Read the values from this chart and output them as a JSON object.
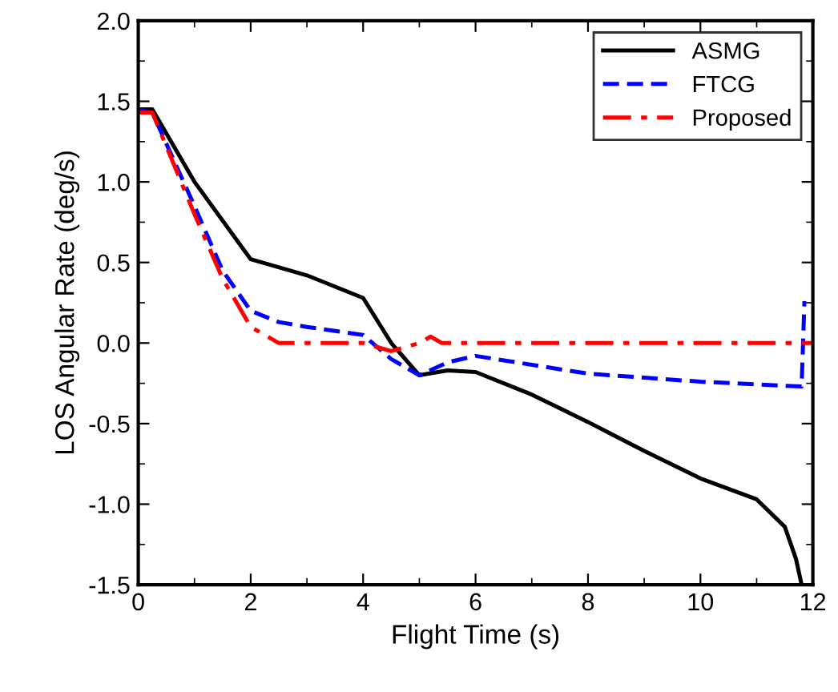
{
  "chart_data": {
    "type": "line",
    "xlabel": "Flight Time (s)",
    "ylabel": "LOS Angular Rate (deg/s)",
    "xlim": [
      0,
      12
    ],
    "xticks": [
      0,
      2,
      4,
      6,
      8,
      10,
      12
    ],
    "ylim": [
      -1.5,
      2.0
    ],
    "yticks": [
      -1.5,
      {
        "value": -1.0,
        "label": "-1.0"
      },
      -0.5,
      {
        "value": 0.0,
        "label": "0.0"
      },
      0.5,
      {
        "value": 1.0,
        "label": "1.0"
      },
      1.5,
      {
        "value": 2.0,
        "label": "2.0"
      }
    ],
    "grid": false,
    "legend": "top right",
    "series": [
      {
        "name": "ASMG",
        "color": "#000000",
        "line_style": "solid",
        "x": [
          0,
          0.25,
          1,
          2,
          3,
          4,
          4.5,
          5,
          5.5,
          6,
          7,
          8,
          9,
          10,
          11,
          11.5,
          11.7,
          11.8
        ],
        "values": [
          1.45,
          1.45,
          1.0,
          0.52,
          0.42,
          0.28,
          0.0,
          -0.2,
          -0.17,
          -0.18,
          -0.32,
          -0.49,
          -0.67,
          -0.84,
          -0.97,
          -1.14,
          -1.34,
          -1.5
        ]
      },
      {
        "name": "FTCG",
        "color": "#0000ff",
        "line_style": "dashed",
        "x": [
          0,
          0.25,
          1,
          1.5,
          2,
          2.5,
          3,
          4,
          4.5,
          5,
          5.5,
          6,
          8,
          10,
          11.8,
          11.85
        ],
        "values": [
          1.45,
          1.43,
          0.85,
          0.45,
          0.2,
          0.13,
          0.1,
          0.05,
          -0.1,
          -0.2,
          -0.12,
          -0.08,
          -0.19,
          -0.24,
          -0.27,
          0.26
        ]
      },
      {
        "name": "Proposed",
        "color": "#ff0000",
        "line_style": "dashdot",
        "x": [
          0,
          0.25,
          1,
          1.5,
          2,
          2.5,
          4,
          4.5,
          5,
          5.2,
          5.4,
          12
        ],
        "values": [
          1.43,
          1.43,
          0.8,
          0.4,
          0.1,
          0.0,
          0.0,
          -0.05,
          0.0,
          0.04,
          0.0,
          0.0
        ]
      }
    ]
  }
}
